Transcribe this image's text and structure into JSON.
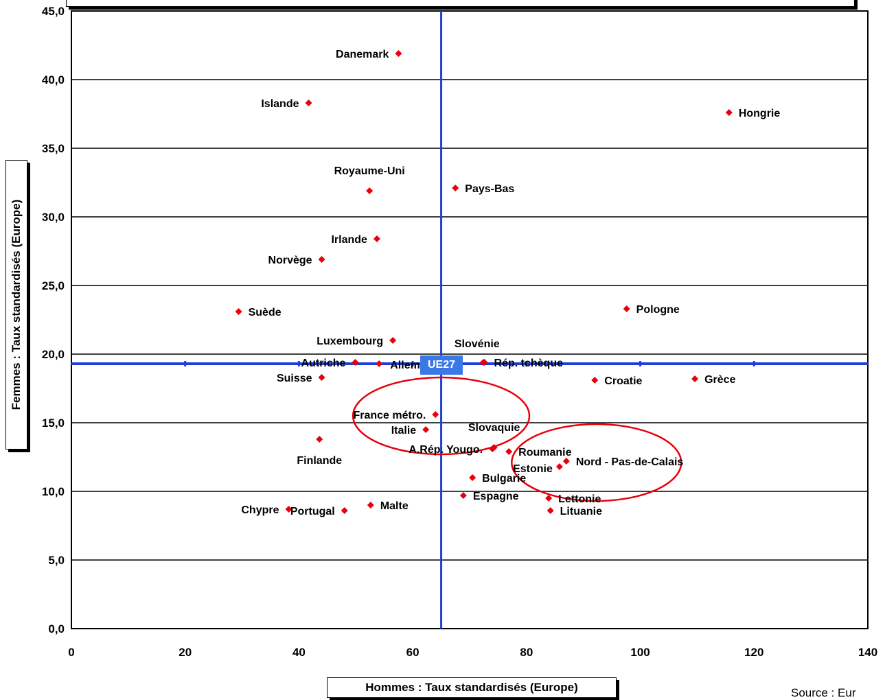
{
  "chart_data": {
    "type": "scatter",
    "title": "",
    "xlabel": "Hommes : Taux standardisés (Europe)",
    "ylabel": "Femmes : Taux standardisés (Europe)",
    "xlim": [
      0,
      140
    ],
    "ylim": [
      0,
      45
    ],
    "x_ticks": [
      "0",
      "20",
      "40",
      "60",
      "80",
      "100",
      "120",
      "140"
    ],
    "y_ticks": [
      "0,0",
      "5,0",
      "10,0",
      "15,0",
      "20,0",
      "25,0",
      "30,0",
      "35,0",
      "40,0",
      "45,0"
    ],
    "grid": true,
    "reference_lines": {
      "x": 65,
      "y": 19.3,
      "label": "UE27",
      "color": "#1f3fd8"
    },
    "marker_color": "#e8000b",
    "highlight_color": "#e8000b",
    "points": [
      {
        "label": "Danemark",
        "x": 57.5,
        "y": 41.9
      },
      {
        "label": "Islande",
        "x": 41.7,
        "y": 38.3
      },
      {
        "label": "Hongrie",
        "x": 115.6,
        "y": 37.6
      },
      {
        "label": "Royaume-Uni",
        "x": 52.4,
        "y": 31.9
      },
      {
        "label": "Pays-Bas",
        "x": 67.5,
        "y": 32.1
      },
      {
        "label": "Irlande",
        "x": 53.7,
        "y": 28.4
      },
      {
        "label": "Norvège",
        "x": 44.0,
        "y": 26.9
      },
      {
        "label": "Suède",
        "x": 29.4,
        "y": 23.1
      },
      {
        "label": "Pologne",
        "x": 97.6,
        "y": 23.3
      },
      {
        "label": "Luxembourg",
        "x": 56.5,
        "y": 21.0
      },
      {
        "label": "Slovénie",
        "x": 72.4,
        "y": 19.4
      },
      {
        "label": "Autriche",
        "x": 49.9,
        "y": 19.4
      },
      {
        "label": "Allemagne",
        "x": 54.1,
        "y": 19.3
      },
      {
        "label": "Rép. tchèque",
        "x": 72.6,
        "y": 19.4
      },
      {
        "label": "Suisse",
        "x": 44.0,
        "y": 18.3
      },
      {
        "label": "Croatie",
        "x": 92.0,
        "y": 18.1
      },
      {
        "label": "Grèce",
        "x": 109.6,
        "y": 18.2
      },
      {
        "label": "France métro.",
        "x": 64.0,
        "y": 15.6
      },
      {
        "label": "Italie",
        "x": 62.3,
        "y": 14.5
      },
      {
        "label": "Slovaquie",
        "x": 74.3,
        "y": 13.2
      },
      {
        "label": "Finlande",
        "x": 43.6,
        "y": 13.8
      },
      {
        "label": "A.Rép. Yougo.",
        "x": 74.0,
        "y": 13.1
      },
      {
        "label": "Roumanie",
        "x": 76.9,
        "y": 12.9
      },
      {
        "label": "Nord - Pas-de-Calais",
        "x": 87.0,
        "y": 12.2
      },
      {
        "label": "Estonie",
        "x": 85.8,
        "y": 11.8
      },
      {
        "label": "Bulgarie",
        "x": 70.5,
        "y": 11.0
      },
      {
        "label": "Espagne",
        "x": 68.9,
        "y": 9.7
      },
      {
        "label": "Lettonie",
        "x": 83.9,
        "y": 9.5
      },
      {
        "label": "Lituanie",
        "x": 84.2,
        "y": 8.6
      },
      {
        "label": "Malte",
        "x": 52.6,
        "y": 9.0
      },
      {
        "label": "Portugal",
        "x": 48.0,
        "y": 8.6
      },
      {
        "label": "Chypre",
        "x": 38.2,
        "y": 8.7
      }
    ],
    "highlights": [
      {
        "cx": 65.0,
        "cy": 15.5,
        "rx": 15.5,
        "ry": 2.8
      },
      {
        "cx": 92.3,
        "cy": 12.1,
        "rx": 14.9,
        "ry": 2.8
      }
    ]
  },
  "source": "Source : Eur"
}
